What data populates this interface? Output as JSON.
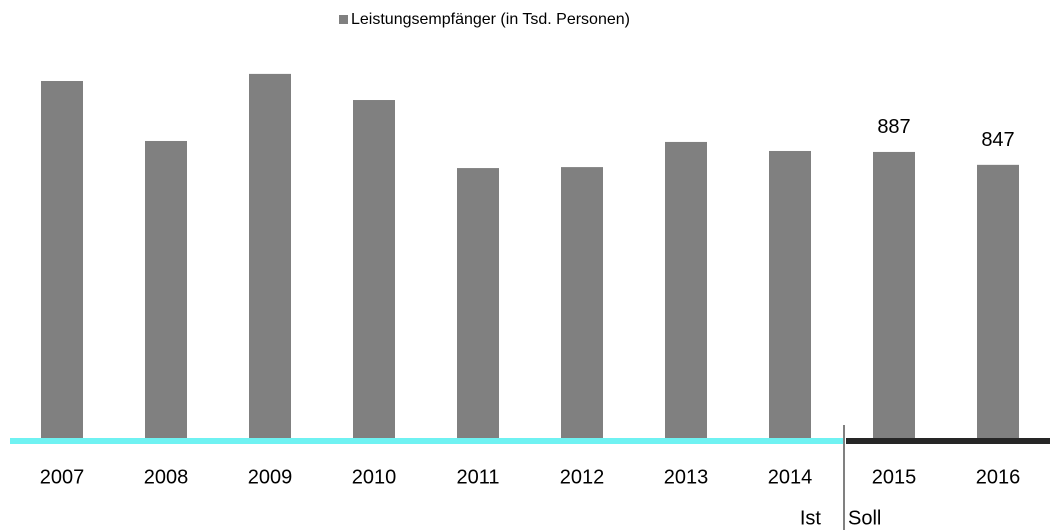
{
  "chart_data": {
    "type": "bar",
    "legend": "Leistungsempfänger (in Tsd. Personen)",
    "categories": [
      "2007",
      "2008",
      "2009",
      "2010",
      "2011",
      "2012",
      "2013",
      "2014",
      "2015",
      "2016"
    ],
    "values": [
      1107,
      921,
      1129,
      1048,
      837,
      840,
      918,
      890,
      887,
      847
    ],
    "value_labels": [
      null,
      null,
      null,
      null,
      null,
      null,
      null,
      null,
      "887",
      "847"
    ],
    "color": "#808080",
    "segments": [
      {
        "label": "Ist",
        "color": "#6ff2f2",
        "start": "2007"
      },
      {
        "label": "Soll",
        "color": "#262626",
        "start": "2015"
      }
    ]
  }
}
